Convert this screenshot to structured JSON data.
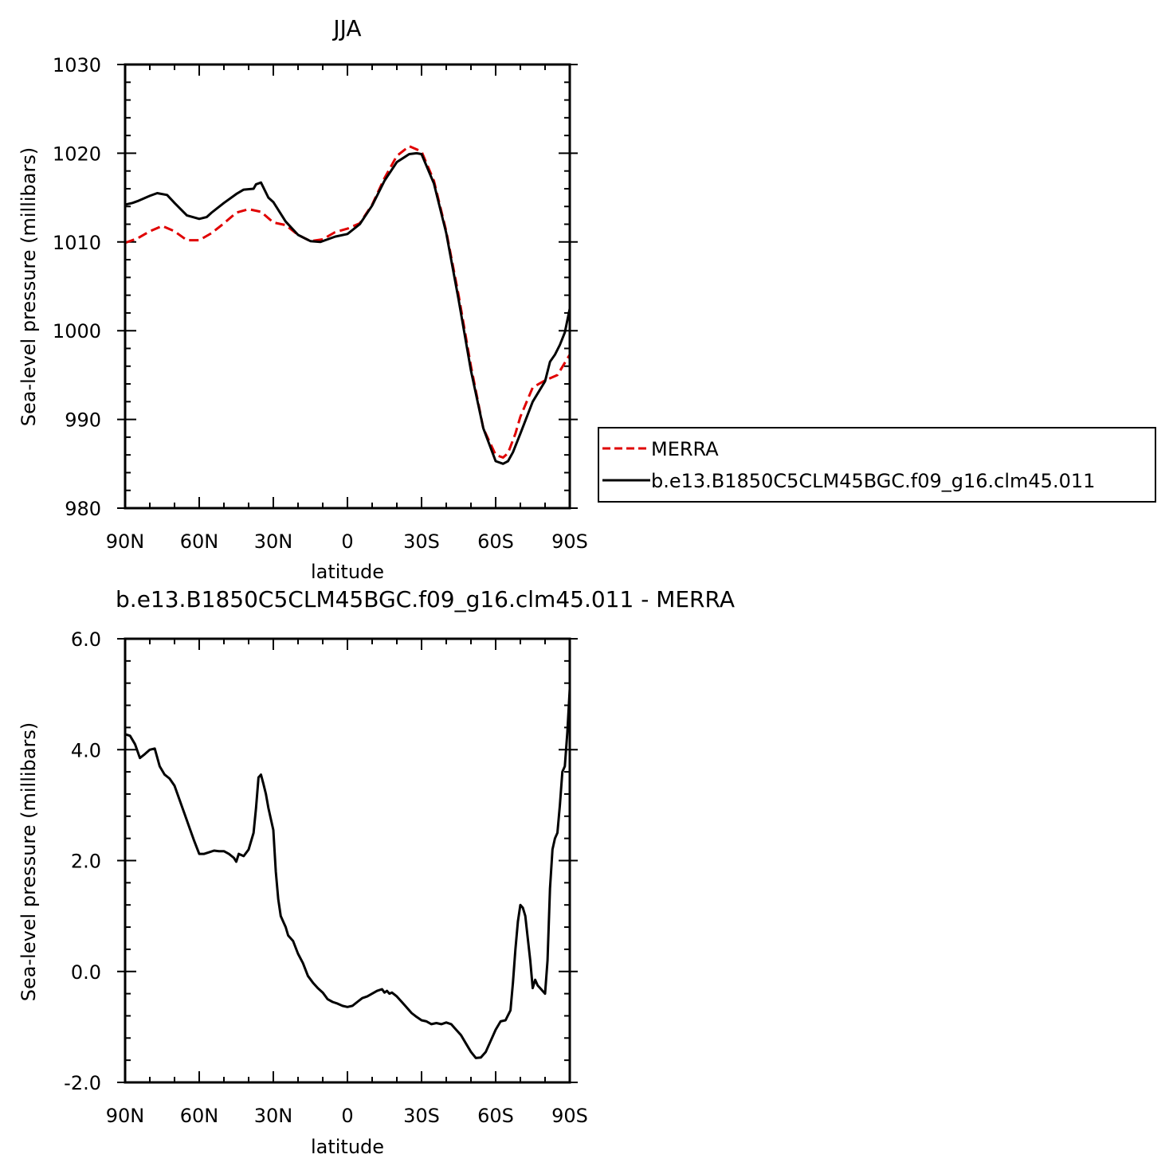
{
  "chart_data": [
    {
      "type": "line",
      "title": "JJA",
      "xlabel": "latitude",
      "ylabel": "Sea-level pressure (millibars)",
      "xlim": [
        90,
        -90
      ],
      "ylim": [
        980,
        1030
      ],
      "x_ticks": [
        90,
        60,
        30,
        0,
        -30,
        -60,
        -90
      ],
      "x_tick_labels": [
        "90N",
        "60N",
        "30N",
        "0",
        "30S",
        "60S",
        "90S"
      ],
      "y_ticks": [
        980,
        990,
        1000,
        1010,
        1020,
        1030
      ],
      "y_tick_labels": [
        "980",
        "990",
        "1000",
        "1010",
        "1020",
        "1030"
      ],
      "legend_position": "right",
      "series": [
        {
          "name": "MERRA",
          "color": "#e00000",
          "dash": "dashed",
          "x": [
            90,
            85,
            80,
            75,
            70,
            65,
            60,
            55,
            50,
            45,
            40,
            35,
            30,
            25,
            20,
            15,
            10,
            5,
            0,
            -5,
            -10,
            -15,
            -20,
            -25,
            -30,
            -35,
            -40,
            -45,
            -50,
            -55,
            -60,
            -63,
            -65,
            -68,
            -70,
            -75,
            -80,
            -85,
            -90
          ],
          "y": [
            1009.9,
            1010.4,
            1011.2,
            1011.8,
            1011.2,
            1010.2,
            1010.2,
            1011.0,
            1012.1,
            1013.3,
            1013.7,
            1013.4,
            1012.2,
            1011.9,
            1010.8,
            1010.1,
            1010.3,
            1011.1,
            1011.5,
            1012.1,
            1014.2,
            1017.2,
            1019.7,
            1020.8,
            1020.2,
            1016.9,
            1011.2,
            1004.0,
            996.0,
            989.0,
            986.0,
            985.7,
            986.2,
            988.4,
            990.3,
            993.6,
            994.4,
            995.0,
            997.3
          ]
        },
        {
          "name": "b.e13.B1850C5CLM45BGC.f09_g16.clm45.011",
          "color": "#000000",
          "dash": "solid",
          "x": [
            90,
            87,
            85,
            80,
            77,
            73,
            70,
            65,
            60,
            57,
            55,
            50,
            45,
            42,
            38,
            37,
            35,
            32,
            30,
            25,
            20,
            15,
            11,
            8,
            5,
            0,
            -5,
            -10,
            -15,
            -20,
            -25,
            -28,
            -30,
            -35,
            -40,
            -45,
            -50,
            -55,
            -60,
            -63,
            -65,
            -67,
            -70,
            -75,
            -80,
            -82,
            -84,
            -86,
            -88,
            -90
          ],
          "y": [
            1014.2,
            1014.4,
            1014.6,
            1015.2,
            1015.5,
            1015.3,
            1014.4,
            1013.0,
            1012.6,
            1012.8,
            1013.3,
            1014.4,
            1015.4,
            1015.9,
            1016.0,
            1016.5,
            1016.7,
            1015.0,
            1014.5,
            1012.3,
            1010.8,
            1010.1,
            1010.0,
            1010.3,
            1010.6,
            1010.9,
            1012.0,
            1014.1,
            1016.9,
            1019.0,
            1019.9,
            1020.0,
            1019.9,
            1016.6,
            1011.0,
            1003.5,
            995.5,
            989.0,
            985.3,
            985.0,
            985.3,
            986.3,
            988.4,
            992.0,
            994.3,
            996.5,
            997.3,
            998.4,
            999.8,
            1002.5
          ]
        }
      ]
    },
    {
      "type": "line",
      "title": "b.e13.B1850C5CLM45BGC.f09_g16.clm45.011 - MERRA",
      "xlabel": "latitude",
      "ylabel": "Sea-level pressure (millibars)",
      "xlim": [
        90,
        -90
      ],
      "ylim": [
        -2.0,
        6.0
      ],
      "x_ticks": [
        90,
        60,
        30,
        0,
        -30,
        -60,
        -90
      ],
      "x_tick_labels": [
        "90N",
        "60N",
        "30N",
        "0",
        "30S",
        "60S",
        "90S"
      ],
      "y_ticks": [
        -2.0,
        0.0,
        2.0,
        4.0,
        6.0
      ],
      "y_tick_labels": [
        "-2.0",
        "0.0",
        "2.0",
        "4.0",
        "6.0"
      ],
      "series": [
        {
          "name": "",
          "color": "#000000",
          "dash": "solid",
          "x": [
            90,
            88,
            86,
            84,
            82,
            80,
            78,
            76,
            74,
            72,
            70,
            68,
            66,
            64,
            62,
            60,
            58,
            56,
            54,
            52,
            50,
            48,
            46,
            45,
            44,
            43,
            42,
            40,
            38,
            37,
            36,
            35,
            34,
            33,
            32,
            30,
            29,
            28,
            27,
            26,
            25,
            24,
            22,
            20,
            18,
            16,
            14,
            12,
            10,
            8,
            6,
            4,
            2,
            0,
            -2,
            -4,
            -6,
            -8,
            -10,
            -12,
            -14,
            -15,
            -16,
            -17,
            -18,
            -20,
            -22,
            -24,
            -26,
            -28,
            -30,
            -32,
            -34,
            -36,
            -38,
            -40,
            -42,
            -44,
            -46,
            -48,
            -50,
            -52,
            -54,
            -56,
            -58,
            -60,
            -62,
            -64,
            -66,
            -67,
            -68,
            -69,
            -70,
            -71,
            -72,
            -73,
            -74,
            -75,
            -76,
            -77,
            -78,
            -79,
            -80,
            -81,
            -82,
            -83,
            -84,
            -85,
            -86,
            -87,
            -88,
            -89,
            -90
          ],
          "y": [
            4.28,
            4.25,
            4.1,
            3.85,
            3.92,
            4.0,
            4.02,
            3.7,
            3.55,
            3.48,
            3.35,
            3.1,
            2.85,
            2.6,
            2.35,
            2.12,
            2.12,
            2.15,
            2.18,
            2.17,
            2.17,
            2.12,
            2.05,
            1.98,
            2.12,
            2.1,
            2.08,
            2.2,
            2.5,
            2.95,
            3.5,
            3.55,
            3.38,
            3.2,
            2.95,
            2.55,
            1.8,
            1.3,
            1.0,
            0.9,
            0.8,
            0.65,
            0.55,
            0.32,
            0.15,
            -0.08,
            -0.2,
            -0.3,
            -0.38,
            -0.5,
            -0.55,
            -0.58,
            -0.62,
            -0.64,
            -0.62,
            -0.55,
            -0.48,
            -0.45,
            -0.4,
            -0.35,
            -0.32,
            -0.38,
            -0.35,
            -0.4,
            -0.38,
            -0.45,
            -0.55,
            -0.65,
            -0.75,
            -0.82,
            -0.88,
            -0.9,
            -0.95,
            -0.93,
            -0.95,
            -0.92,
            -0.95,
            -1.05,
            -1.15,
            -1.3,
            -1.45,
            -1.56,
            -1.55,
            -1.45,
            -1.25,
            -1.05,
            -0.9,
            -0.88,
            -0.7,
            -0.2,
            0.4,
            0.9,
            1.2,
            1.15,
            1.0,
            0.6,
            0.2,
            -0.3,
            -0.15,
            -0.25,
            -0.3,
            -0.35,
            -0.4,
            0.2,
            1.5,
            2.2,
            2.4,
            2.5,
            3.0,
            3.6,
            3.7,
            4.3,
            5.1
          ]
        }
      ]
    }
  ]
}
